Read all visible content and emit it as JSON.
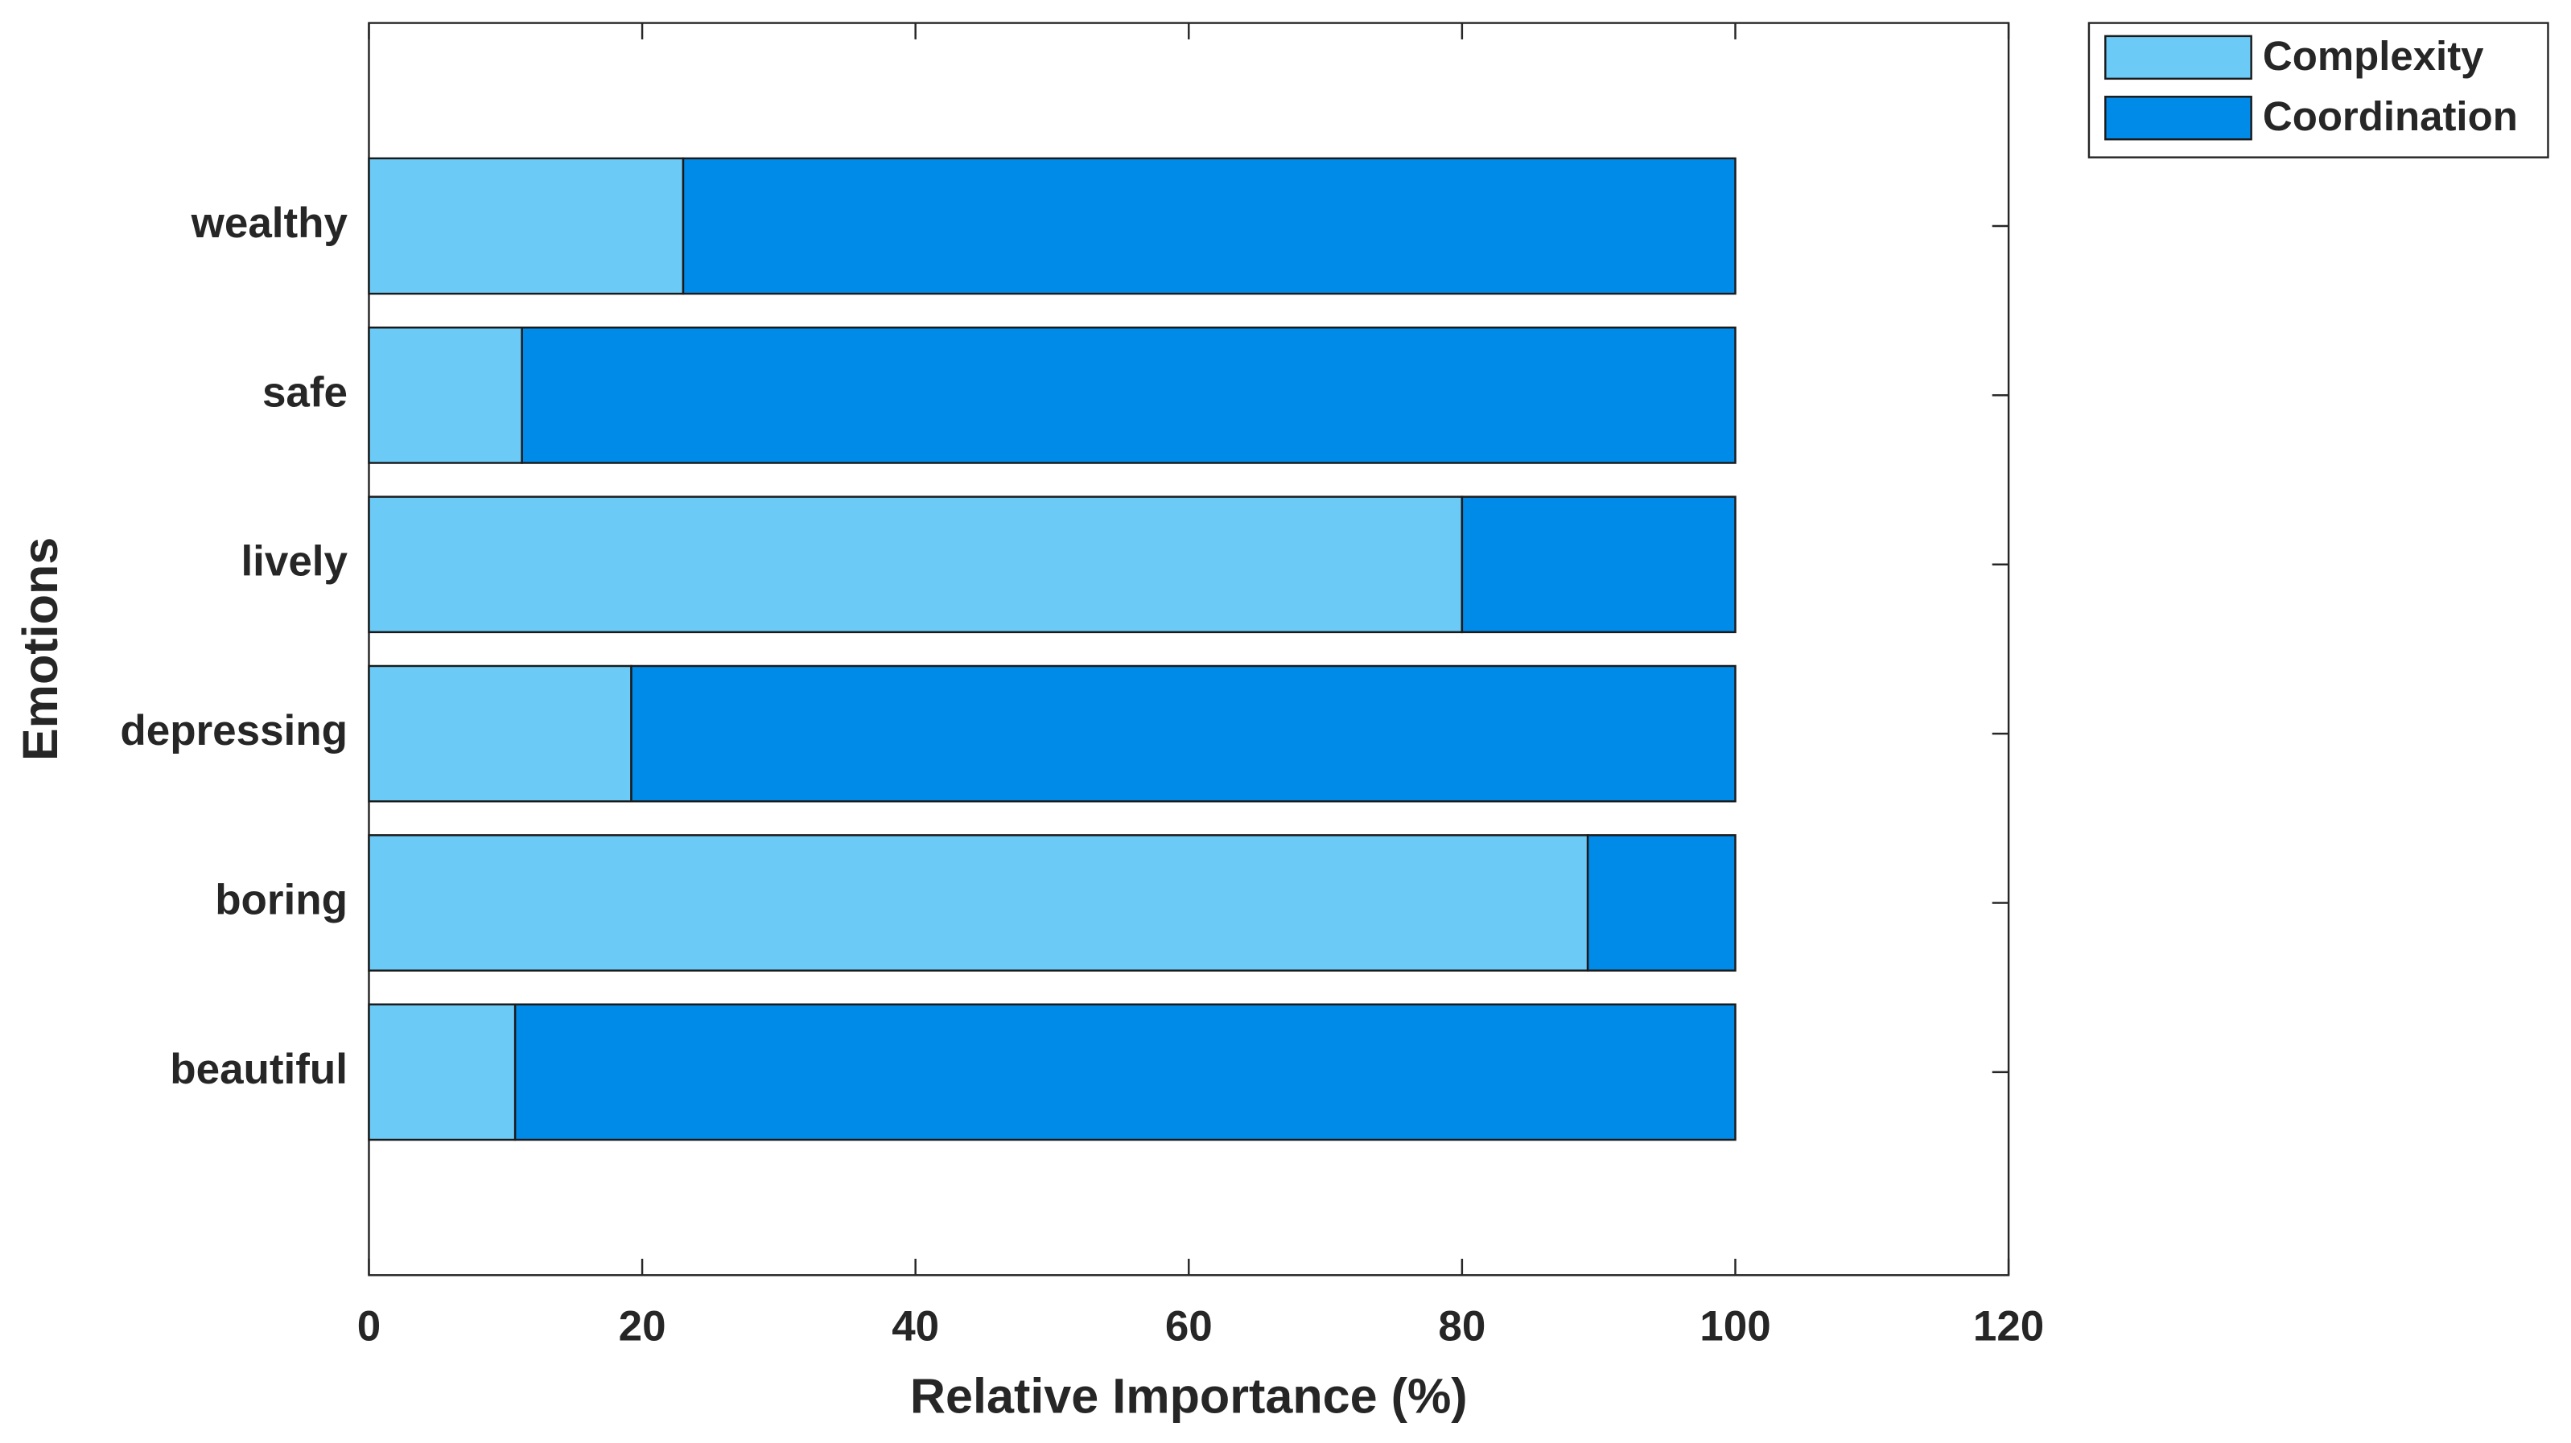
{
  "chart_data": {
    "type": "stacked-barh",
    "xlabel": "Relative Importance (%)",
    "ylabel": "Emotions",
    "categories": [
      "beautiful",
      "boring",
      "depressing",
      "lively",
      "safe",
      "wealthy"
    ],
    "series": [
      {
        "name": "Complexity",
        "color": "#6bcaf6",
        "values": [
          10.7,
          89.2,
          19.2,
          80.0,
          11.2,
          23.0
        ]
      },
      {
        "name": "Coordination",
        "color": "#008be9",
        "values": [
          89.3,
          10.8,
          80.8,
          20.0,
          88.8,
          77.0
        ]
      }
    ],
    "xlim": [
      0,
      120
    ],
    "xticks": [
      0,
      20,
      40,
      60,
      80,
      100,
      120
    ],
    "legend": "northeastoutside",
    "grid": false
  }
}
